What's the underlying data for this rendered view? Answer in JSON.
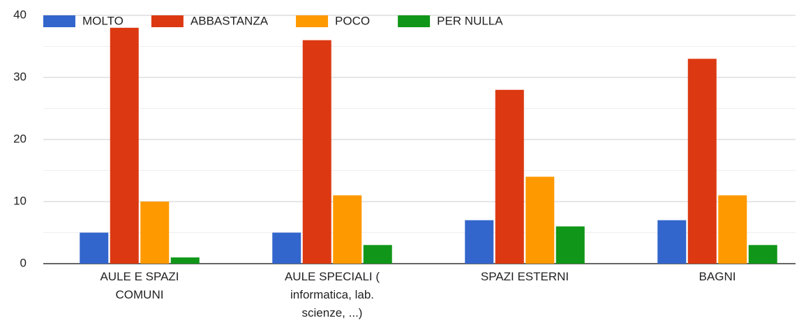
{
  "chart_data": {
    "type": "bar",
    "categories": [
      "AULE E SPAZI COMUNI",
      "AULE SPECIALI ( informatica, lab. scienze, ...)",
      "SPAZI ESTERNI",
      "BAGNI"
    ],
    "series": [
      {
        "name": "MOLTO",
        "color": "#3366cc",
        "values": [
          5,
          5,
          7,
          7
        ]
      },
      {
        "name": "ABBASTANZA",
        "color": "#dc3912",
        "values": [
          38,
          36,
          28,
          33
        ]
      },
      {
        "name": "POCO",
        "color": "#ff9900",
        "values": [
          10,
          11,
          14,
          11
        ]
      },
      {
        "name": "PER NULLA",
        "color": "#109618",
        "values": [
          1,
          3,
          6,
          3
        ]
      }
    ],
    "ylim": [
      0,
      40
    ],
    "yticks": [
      0,
      10,
      20,
      30,
      40
    ],
    "grid": true,
    "legend": "top"
  }
}
